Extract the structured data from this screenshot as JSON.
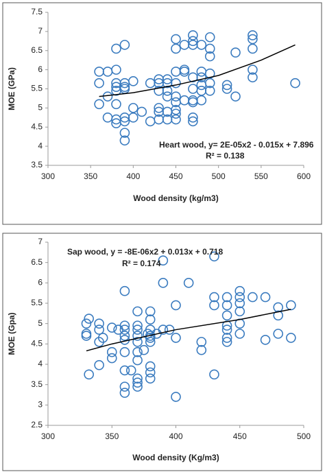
{
  "chart_data": [
    {
      "type": "scatter",
      "y_label": "MOE (GPa)",
      "x_label": "Wood density (kg/m3)",
      "color": "#3a7bbf",
      "annotations": [
        "Heart wood, y= 2E-05x2 - 0.015x + 7.896",
        "R² = 0.138"
      ],
      "xlim": [
        300,
        600
      ],
      "xticks": [
        300,
        350,
        400,
        450,
        500,
        550,
        600
      ],
      "ylim": [
        3.5,
        7.5
      ],
      "yticks": [
        3.5,
        4,
        4.5,
        5,
        5.5,
        6,
        6.5,
        7,
        7.5
      ],
      "x": [
        360,
        360,
        360,
        370,
        370,
        370,
        380,
        380,
        380,
        380,
        380,
        380,
        380,
        380,
        390,
        390,
        390,
        390,
        390,
        390,
        390,
        390,
        400,
        400,
        400,
        410,
        420,
        420,
        430,
        430,
        430,
        430,
        430,
        430,
        440,
        440,
        440,
        440,
        440,
        440,
        450,
        450,
        450,
        450,
        450,
        450,
        450,
        450,
        450,
        460,
        460,
        460,
        460,
        470,
        470,
        470,
        470,
        470,
        470,
        470,
        470,
        470,
        480,
        480,
        480,
        480,
        480,
        480,
        490,
        490,
        490,
        490,
        490,
        490,
        510,
        510,
        520,
        520,
        540,
        540,
        540,
        540,
        540,
        590
      ],
      "y": [
        5.95,
        5.65,
        5.1,
        5.95,
        5.3,
        4.75,
        6.55,
        6.0,
        5.65,
        5.55,
        5.45,
        5.1,
        4.7,
        4.6,
        6.65,
        5.65,
        5.55,
        5.5,
        4.75,
        4.65,
        4.35,
        4.15,
        5.7,
        5.0,
        4.75,
        4.9,
        5.65,
        4.65,
        5.75,
        5.65,
        5.45,
        5.0,
        4.9,
        4.7,
        5.75,
        5.65,
        5.45,
        5.3,
        4.9,
        4.7,
        6.8,
        6.55,
        5.95,
        5.65,
        5.3,
        5.15,
        4.95,
        4.85,
        4.7,
        6.65,
        6.0,
        5.95,
        5.2,
        6.9,
        6.75,
        6.65,
        5.8,
        5.5,
        5.2,
        5.15,
        4.75,
        4.65,
        6.65,
        5.95,
        5.8,
        5.6,
        5.45,
        5.2,
        6.85,
        6.55,
        6.35,
        5.9,
        5.65,
        5.45,
        5.6,
        5.5,
        6.45,
        5.3,
        6.9,
        6.8,
        6.55,
        6.0,
        5.8,
        5.65
      ],
      "trendline": {
        "x": [
          360,
          400,
          450,
          500,
          550,
          590
        ],
        "y": [
          5.3,
          5.4,
          5.6,
          5.85,
          6.25,
          6.65
        ]
      }
    },
    {
      "type": "scatter",
      "y_label": "MOE (Gpa)",
      "x_label": "Wood density (Kg/m3)",
      "color": "#3a7bbf",
      "annotations": [
        "Sap wood, y = -8E-06x2 + 0.013x + 0.718",
        "R² = 0.174"
      ],
      "xlim": [
        300,
        500
      ],
      "xticks": [
        300,
        350,
        400,
        450,
        500
      ],
      "ylim": [
        2.5,
        7
      ],
      "yticks": [
        2.5,
        3,
        3.5,
        4,
        4.5,
        5,
        5.5,
        6,
        6.5,
        7
      ],
      "x": [
        330,
        330,
        330,
        332,
        332,
        340,
        340,
        340,
        340,
        343,
        350,
        350,
        350,
        355,
        360,
        360,
        360,
        360,
        360,
        360,
        360,
        360,
        360,
        365,
        370,
        370,
        370,
        370,
        370,
        370,
        370,
        370,
        370,
        370,
        375,
        378,
        380,
        380,
        380,
        380,
        380,
        380,
        380,
        380,
        380,
        385,
        390,
        390,
        390,
        395,
        400,
        400,
        400,
        410,
        420,
        420,
        430,
        430,
        430,
        430,
        440,
        440,
        440,
        440,
        440,
        440,
        440,
        450,
        450,
        450,
        450,
        450,
        450,
        460,
        470,
        470,
        480,
        480,
        480,
        490,
        490
      ],
      "y": [
        5.0,
        4.75,
        4.7,
        5.12,
        3.75,
        5.0,
        4.85,
        4.55,
        3.98,
        4.65,
        4.9,
        4.3,
        4.15,
        4.85,
        5.8,
        4.95,
        4.85,
        4.7,
        4.6,
        4.3,
        3.85,
        3.45,
        3.3,
        3.85,
        5.3,
        4.95,
        4.85,
        4.7,
        4.55,
        4.3,
        4.1,
        3.65,
        3.55,
        3.45,
        4.35,
        4.75,
        5.3,
        5.1,
        4.85,
        4.7,
        4.65,
        4.55,
        3.95,
        3.8,
        3.65,
        4.75,
        6.55,
        6.0,
        4.85,
        4.85,
        5.45,
        4.65,
        3.2,
        6.0,
        4.55,
        4.35,
        6.65,
        5.65,
        5.45,
        3.75,
        5.65,
        5.45,
        5.2,
        4.95,
        4.85,
        4.65,
        4.55,
        5.8,
        5.65,
        5.5,
        5.3,
        5.0,
        4.75,
        5.65,
        5.65,
        4.6,
        5.4,
        5.2,
        4.75,
        5.45,
        4.65
      ],
      "trendline": {
        "x": [
          330,
          350,
          400,
          450,
          490
        ],
        "y": [
          4.33,
          4.5,
          4.85,
          5.1,
          5.35
        ]
      }
    }
  ]
}
